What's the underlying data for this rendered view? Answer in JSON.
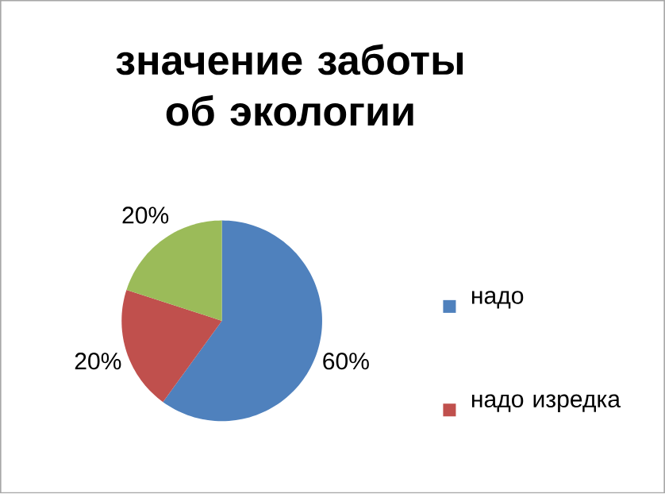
{
  "chart_data": {
    "type": "pie",
    "title": "значение заботы об экологии",
    "categories": [
      "надо",
      "надо изредка",
      null
    ],
    "values": [
      60,
      20,
      20
    ],
    "colors": [
      "#4f81bd",
      "#c0504d",
      "#9bbb59"
    ],
    "value_labels": [
      "60%",
      "20%",
      "20%"
    ],
    "legend": "right"
  }
}
